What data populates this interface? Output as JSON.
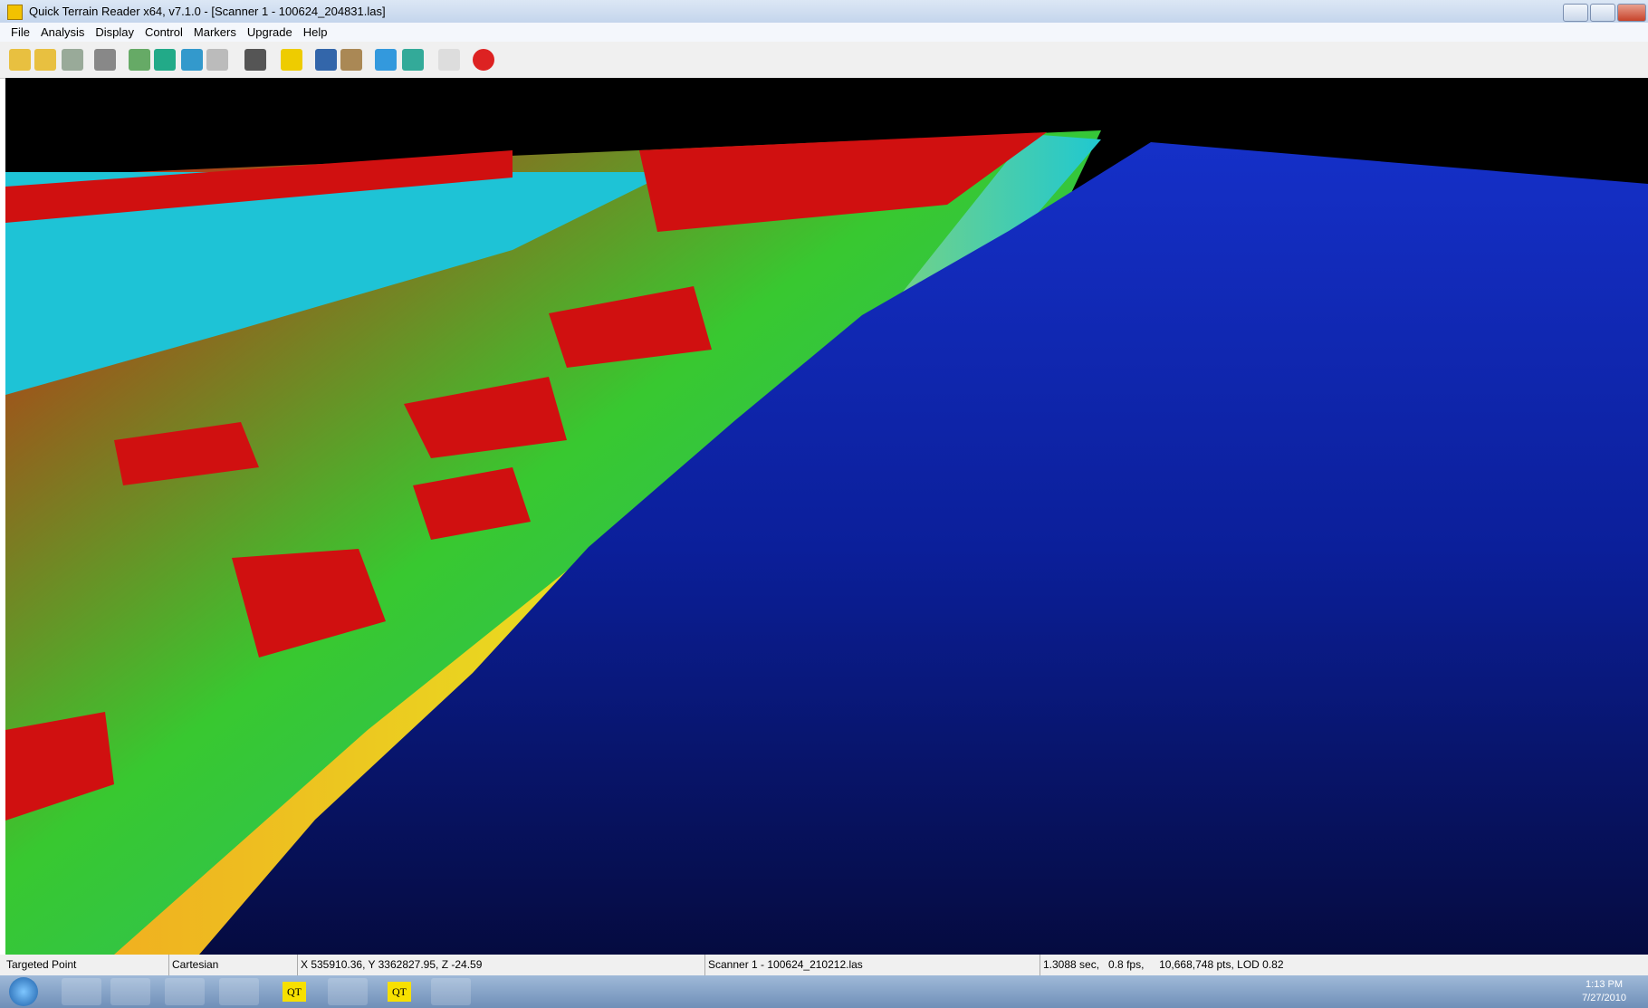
{
  "window": {
    "title": "Quick Terrain Reader x64, v7.1.0 - [Scanner 1 - 100624_204831.las]"
  },
  "menu": [
    "File",
    "Analysis",
    "Display",
    "Control",
    "Markers",
    "Upgrade",
    "Help"
  ],
  "status_bar": [
    "Targeted Point",
    "Cartesian",
    "X 535910.36, Y 3362827.95, Z -24.59",
    "Scanner 1 - 100624_210212.las",
    "1.3088 sec,   0.8 fps,     10,668,748 pts, LOD 0.82"
  ],
  "taskbar": {
    "labels": [
      "QT",
      "QT"
    ],
    "time": "1:13 PM",
    "date": "7/27/2010"
  }
}
